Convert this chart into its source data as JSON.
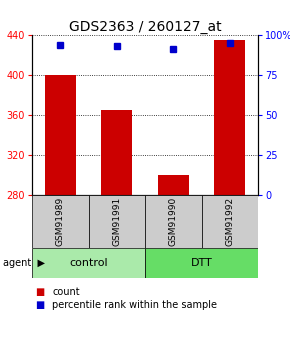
{
  "title": "GDS2363 / 260127_at",
  "samples": [
    "GSM91989",
    "GSM91991",
    "GSM91990",
    "GSM91992"
  ],
  "counts": [
    400,
    365,
    300,
    435
  ],
  "percentiles": [
    94,
    93,
    91,
    95
  ],
  "groups": [
    {
      "label": "control",
      "indices": [
        0,
        1
      ],
      "color": "#aaeaaa"
    },
    {
      "label": "DTT",
      "indices": [
        2,
        3
      ],
      "color": "#66dd66"
    }
  ],
  "ylim_left": [
    280,
    440
  ],
  "ylim_right": [
    0,
    100
  ],
  "yticks_left": [
    280,
    320,
    360,
    400,
    440
  ],
  "yticks_right": [
    0,
    25,
    50,
    75,
    100
  ],
  "ytick_labels_right": [
    "0",
    "25",
    "50",
    "75",
    "100%"
  ],
  "bar_color": "#cc0000",
  "dot_color": "#0000cc",
  "bar_width": 0.55,
  "background_color": "#ffffff",
  "sample_box_color": "#cccccc",
  "legend_count_label": "count",
  "legend_pct_label": "percentile rank within the sample",
  "title_fontsize": 10,
  "tick_fontsize": 7,
  "sample_fontsize": 6.5,
  "group_fontsize": 8
}
